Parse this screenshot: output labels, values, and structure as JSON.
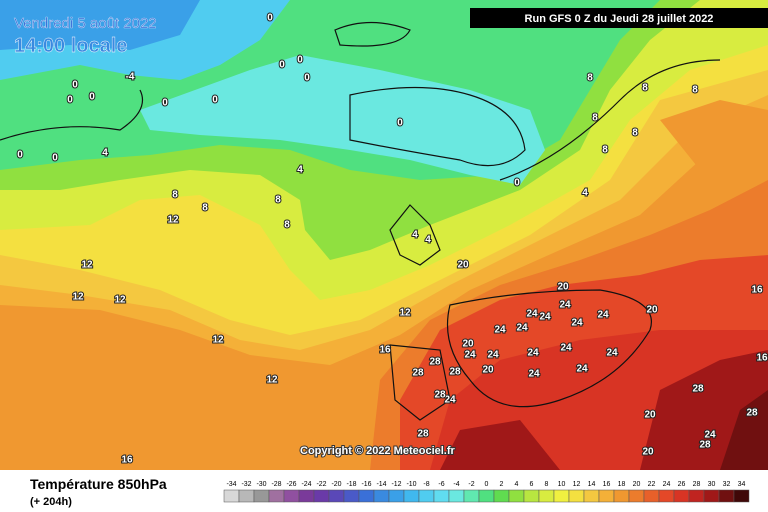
{
  "header": {
    "date": "Vendredi 5 août 2022",
    "time": "14:00 locale",
    "run": "Run GFS 0 Z du Jeudi 28 juillet 2022"
  },
  "copyright": "Copyright © 2022 Meteociel.fr",
  "footer": {
    "title": "Température 850hPa",
    "lead": "(+ 204h)"
  },
  "contour_labels": [
    -4,
    0,
    0,
    0,
    0,
    0,
    0,
    0,
    0,
    0,
    0,
    0,
    0,
    0,
    4,
    4,
    4,
    4,
    4,
    8,
    8,
    8,
    8,
    8,
    8,
    8,
    8,
    8,
    8,
    12,
    12,
    12,
    12,
    12,
    12,
    12,
    16,
    16,
    16,
    16,
    20,
    20,
    20,
    20,
    20,
    20,
    20,
    24,
    24,
    24,
    24,
    24,
    24,
    24,
    24,
    24,
    24,
    24,
    24,
    24,
    24,
    24,
    24,
    28,
    28,
    28,
    28,
    28,
    28,
    28,
    28
  ],
  "scale": {
    "values": [
      -34,
      -32,
      -30,
      -28,
      -26,
      -24,
      -22,
      -20,
      -18,
      -16,
      -14,
      -12,
      -10,
      -8,
      -6,
      -4,
      -2,
      0,
      2,
      4,
      6,
      8,
      10,
      12,
      14,
      16,
      18,
      20,
      22,
      24,
      26,
      28,
      30,
      32,
      34
    ],
    "colors": [
      "#d8d8d8",
      "#b8b8b8",
      "#989898",
      "#a070a0",
      "#9050a0",
      "#7a3a9a",
      "#6a3aa8",
      "#5a48b8",
      "#4a5ac8",
      "#3a70d8",
      "#3a8ae0",
      "#3aa0e8",
      "#40b8ee",
      "#50ccf0",
      "#60dcf0",
      "#6ae8e0",
      "#60e8b0",
      "#50e080",
      "#60dc50",
      "#90e040",
      "#b8e640",
      "#d8ec40",
      "#f0f040",
      "#f4e040",
      "#f4c840",
      "#f4b038",
      "#f09830",
      "#ec7c2c",
      "#e8602a",
      "#e44828",
      "#d83424",
      "#c02420",
      "#a01818",
      "#701010",
      "#400808"
    ]
  }
}
